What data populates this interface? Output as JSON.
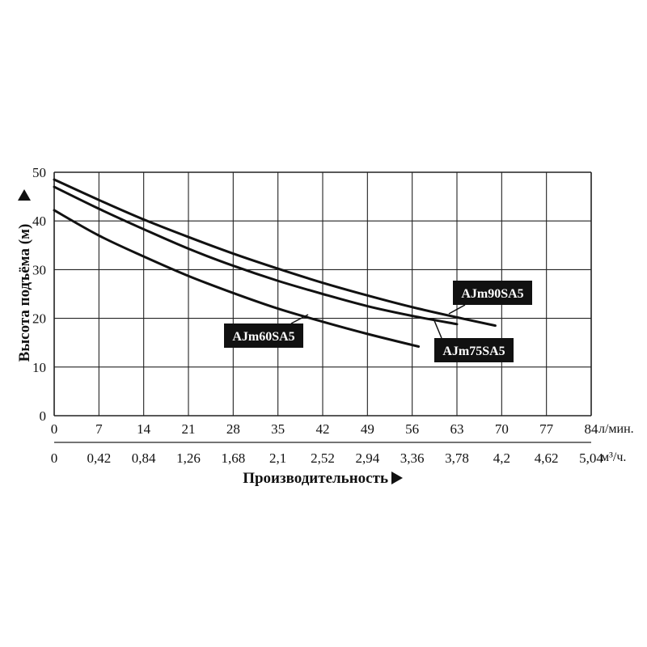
{
  "chart_data": {
    "type": "line",
    "title": "",
    "ylabel": "Высота подъёма (м)",
    "xlabel": "Производительность",
    "x_unit_primary": "л/мин.",
    "x_unit_secondary": "м³/ч.",
    "xlim": [
      0,
      84
    ],
    "ylim": [
      0,
      50
    ],
    "grid": true,
    "x_ticks_primary": [
      "0",
      "7",
      "14",
      "21",
      "28",
      "35",
      "42",
      "49",
      "56",
      "63",
      "70",
      "77",
      "84"
    ],
    "x_ticks_secondary": [
      "0",
      "0,42",
      "0,84",
      "1,26",
      "1,68",
      "2,1",
      "2,52",
      "2,94",
      "3,36",
      "3,78",
      "4,2",
      "4,62",
      "5,04"
    ],
    "y_ticks": [
      "0",
      "10",
      "20",
      "30",
      "40",
      "50"
    ],
    "series": [
      {
        "name": "AJm60SA5",
        "x": [
          0,
          7,
          14,
          21,
          28,
          35,
          42,
          49,
          57
        ],
        "y": [
          42.2,
          37,
          32.7,
          28.7,
          25.2,
          22,
          19.3,
          16.8,
          14.2
        ]
      },
      {
        "name": "AJm75SA5",
        "x": [
          0,
          7,
          14,
          21,
          28,
          35,
          42,
          49,
          56,
          63
        ],
        "y": [
          47,
          42.5,
          38.3,
          34.3,
          30.8,
          27.7,
          25,
          22.5,
          20.5,
          18.8
        ]
      },
      {
        "name": "AJm90SA5",
        "x": [
          0,
          7,
          14,
          21,
          28,
          35,
          42,
          49,
          56,
          63,
          69
        ],
        "y": [
          48.5,
          44.3,
          40.3,
          36.7,
          33.3,
          30.2,
          27.3,
          24.7,
          22.3,
          20.2,
          18.5
        ]
      }
    ]
  }
}
